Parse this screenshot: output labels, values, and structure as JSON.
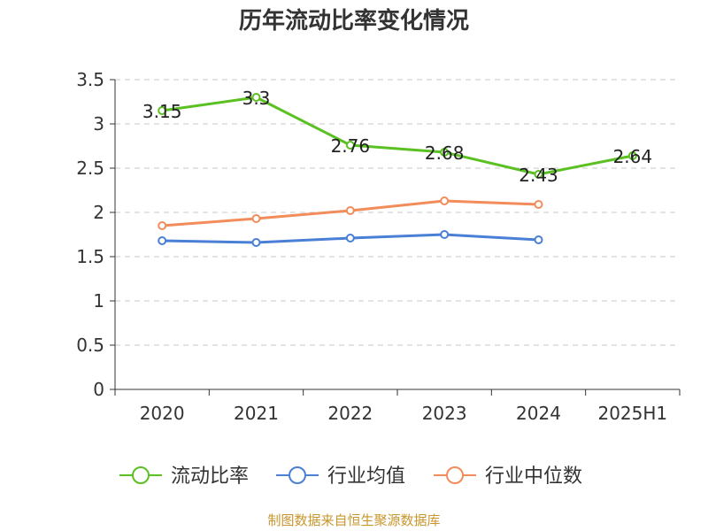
{
  "chart_data": {
    "type": "line",
    "title": "历年流动比率变化情况",
    "categories": [
      "2020",
      "2021",
      "2022",
      "2023",
      "2024",
      "2025H1"
    ],
    "ylim": [
      0,
      3.5
    ],
    "yticks": [
      0,
      0.5,
      1,
      1.5,
      2,
      2.5,
      3,
      3.5
    ],
    "grid": true,
    "legend_position": "bottom",
    "series": [
      {
        "name": "流动比率",
        "color": "#5bc022",
        "values": [
          3.15,
          3.3,
          2.76,
          2.68,
          2.43,
          2.64
        ],
        "labels": [
          "3.15",
          "3.3",
          "2.76",
          "2.68",
          "2.43",
          "2.64"
        ],
        "show_labels": true
      },
      {
        "name": "行业均值",
        "color": "#4a7fd6",
        "values": [
          1.68,
          1.66,
          1.71,
          1.75,
          1.69,
          null
        ],
        "show_labels": false
      },
      {
        "name": "行业中位数",
        "color": "#f28c5a",
        "values": [
          1.85,
          1.93,
          2.02,
          2.13,
          2.09,
          null
        ],
        "show_labels": false
      }
    ]
  },
  "footer": {
    "source": "制图数据来自恒生聚源数据库",
    "color": "#c8962d"
  }
}
